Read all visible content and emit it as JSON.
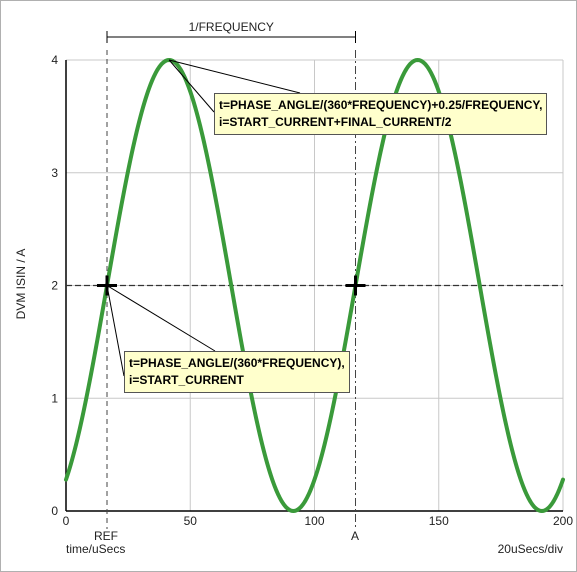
{
  "chart_data": {
    "type": "line",
    "ylabel": "DVM ISIN / A",
    "xlabel": "time/uSecs",
    "xlim": [
      0,
      200
    ],
    "ylim": [
      0,
      4
    ],
    "x_ticks": [
      "0",
      "50",
      "100",
      "150",
      "200"
    ],
    "y_ticks": [
      "0",
      "1",
      "2",
      "3",
      "4"
    ],
    "grid": true,
    "scale_label": "20uSecs/div",
    "series": [
      {
        "color": "#3a9a3a",
        "waveform": "sine",
        "offset": 2,
        "amplitude": 2,
        "period": 100,
        "phase_x": 16.5,
        "x_range": [
          0,
          200
        ]
      }
    ],
    "markers": [
      {
        "x": 16.5,
        "label": "REF"
      },
      {
        "x": 116.5,
        "label": "A"
      }
    ],
    "horizontal_level": 2,
    "period_bracket": {
      "x1": 16.5,
      "x2": 116.5,
      "label": "1/FREQUENCY"
    },
    "annotations": [
      {
        "lines": [
          "t=PHASE_ANGLE/(360*FREQUENCY)+0.25/FREQUENCY,",
          "i=START_CURRENT+FINAL_CURRENT/2"
        ],
        "point": {
          "x": 41.5,
          "y": 4
        }
      },
      {
        "lines": [
          "t=PHASE_ANGLE/(360*FREQUENCY),",
          "i=START_CURRENT"
        ],
        "point": {
          "x": 16.5,
          "y": 2
        }
      }
    ]
  }
}
